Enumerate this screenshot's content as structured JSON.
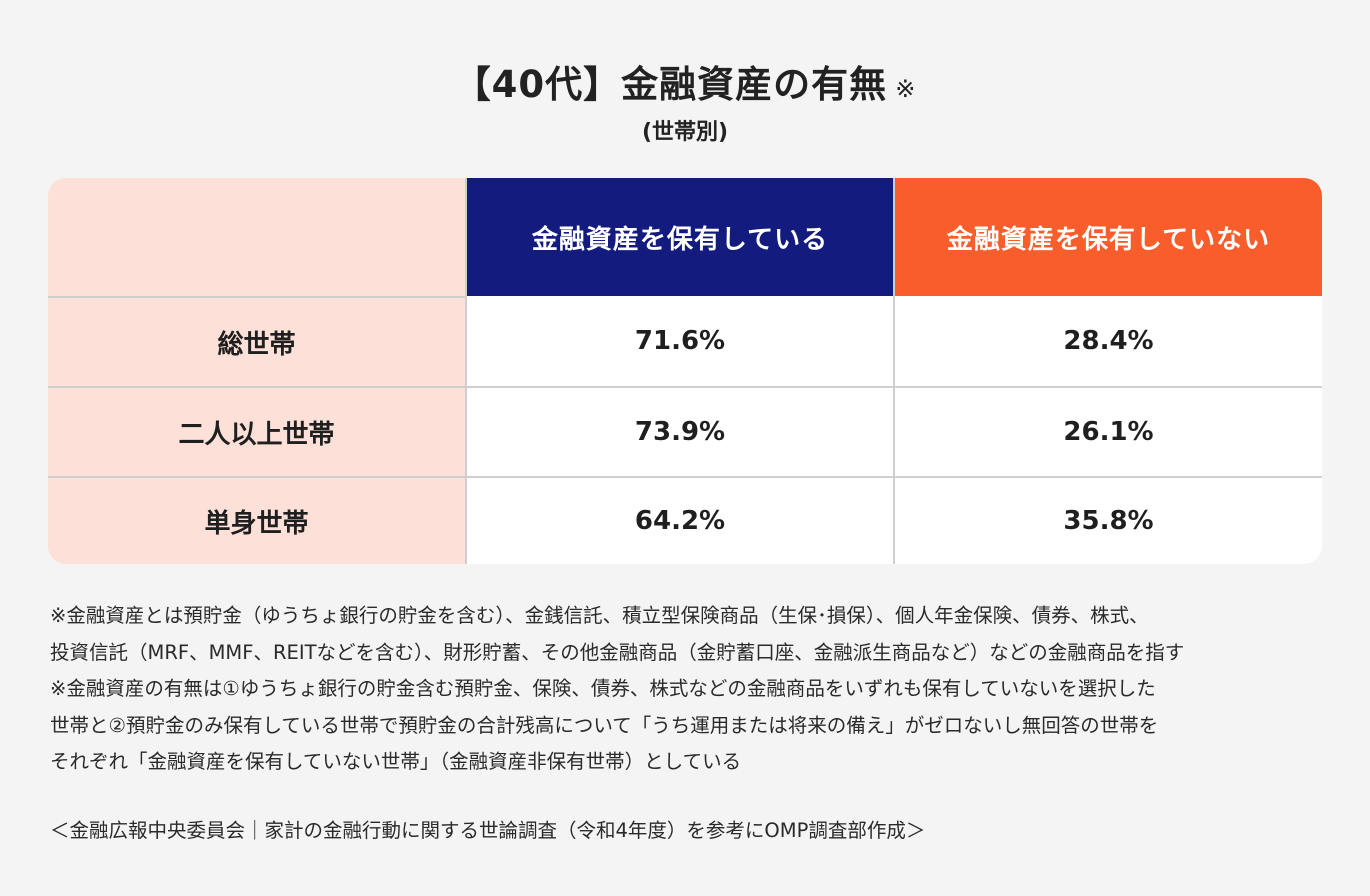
{
  "title": "【40代】金融資産の有無",
  "title_mark": "※",
  "subtitle": "(世帯別)",
  "chart_data": {
    "type": "table",
    "columns": [
      "",
      "金融資産を保有している",
      "金融資産を保有していない"
    ],
    "rows": [
      {
        "label": "総世帯",
        "has": "71.6%",
        "not": "28.4%"
      },
      {
        "label": "二人以上世帯",
        "has": "73.9%",
        "not": "26.1%"
      },
      {
        "label": "単身世帯",
        "has": "64.2%",
        "not": "35.8%"
      }
    ],
    "header_colors": {
      "has": "#141b7e",
      "not": "#f95d2c",
      "row_label_bg": "#fde0d8"
    }
  },
  "notes": [
    "※金融資産とは預貯金（ゆうちょ銀行の貯金を含む）、金銭信託、積立型保険商品（生保･損保）、個人年金保険、債券、株式、",
    "投資信託（MRF、MMF、REITなどを含む）、財形貯蓄、その他金融商品（金貯蓄口座、金融派生商品など）などの金融商品を指す",
    "※金融資産の有無は①ゆうちょ銀行の貯金含む預貯金、保険、債券、株式などの金融商品をいずれも保有していないを選択した",
    "世帯と②預貯金のみ保有している世帯で預貯金の合計残高について「うち運用または将来の備え」がゼロないし無回答の世帯を",
    "それぞれ「金融資産を保有していない世帯」（金融資産非保有世帯）としている"
  ],
  "source": "＜金融広報中央委員会｜家計の金融行動に関する世論調査（令和4年度）を参考にOMP調査部作成＞"
}
